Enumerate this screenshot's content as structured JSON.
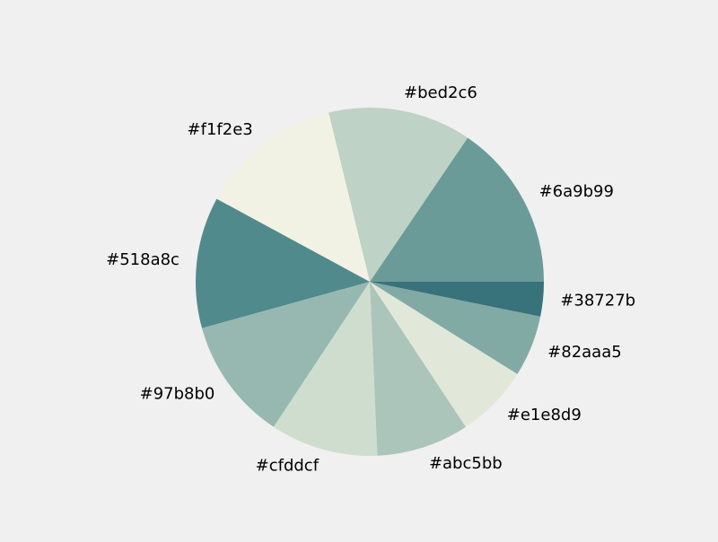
{
  "chart_data": {
    "type": "pie",
    "title": "",
    "start_angle_deg": 0,
    "direction": "counterclockwise",
    "legend": "none",
    "slices": [
      {
        "label": "#6a9b99",
        "color": "#6a9b99",
        "value": 0.155
      },
      {
        "label": "#bed2c6",
        "color": "#bed2c6",
        "value": 0.133
      },
      {
        "label": "#f1f2e3",
        "color": "#f1f2e3",
        "value": 0.133
      },
      {
        "label": "#518a8c",
        "color": "#518a8c",
        "value": 0.122
      },
      {
        "label": "#97b8b0",
        "color": "#97b8b0",
        "value": 0.114
      },
      {
        "label": "#cfddcf",
        "color": "#cfddcf",
        "value": 0.1
      },
      {
        "label": "#abc5bb",
        "color": "#abc5bb",
        "value": 0.086
      },
      {
        "label": "#e1e8d9",
        "color": "#e1e8d9",
        "value": 0.068
      },
      {
        "label": "#82aaa5",
        "color": "#82aaa5",
        "value": 0.057
      },
      {
        "label": "#38727b",
        "color": "#38727b",
        "value": 0.032
      }
    ]
  }
}
